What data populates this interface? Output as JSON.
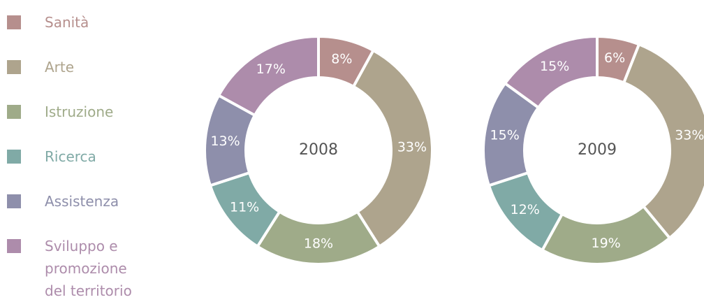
{
  "chart_data": {
    "type": "pie",
    "categories": [
      "Sanità",
      "Arte",
      "Istruzione",
      "Ricerca",
      "Assistenza",
      "Sviluppo e promozione del territorio"
    ],
    "colors": [
      "#b68f8d",
      "#aea48d",
      "#9fab89",
      "#80aaa6",
      "#8e8fab",
      "#ad8cab"
    ],
    "series": [
      {
        "name": "2008",
        "values": [
          8,
          33,
          18,
          11,
          13,
          17
        ],
        "value_labels": [
          "8%",
          "33%",
          "18%",
          "11%",
          "13%",
          "17%"
        ]
      },
      {
        "name": "2009",
        "values": [
          6,
          33,
          19,
          12,
          15,
          15
        ],
        "value_labels": [
          "6%",
          "33%",
          "19%",
          "12%",
          "15%",
          "15%"
        ]
      }
    ]
  }
}
